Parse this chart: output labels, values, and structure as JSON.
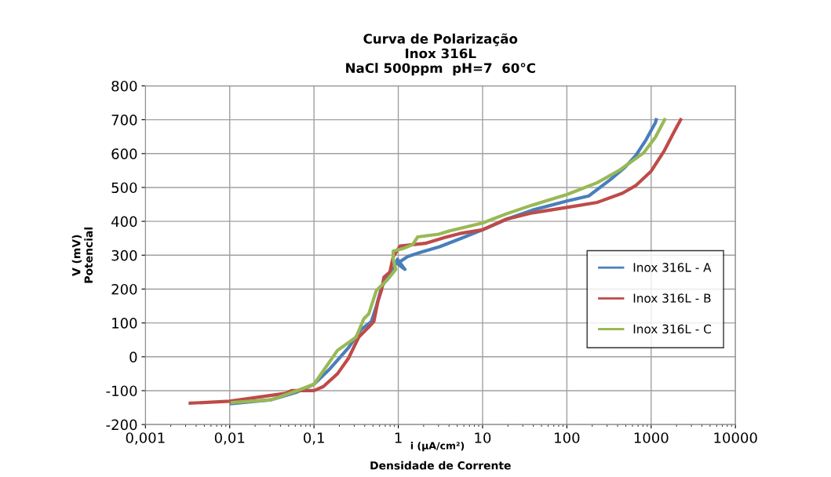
{
  "chart_data": {
    "type": "line",
    "title": "Curva de Polarização\nInox 316L\nNaCl 500ppm  pH=7  60°C",
    "xlabel": "Densidade de Corrente",
    "ylabel": "V (mV)\nPotencial",
    "annotations": [
      "i (µA/cm²)"
    ],
    "log": "x",
    "xlim": [
      0.001,
      10000
    ],
    "xticks": [
      {
        "value": 0.001,
        "label": "0,001"
      },
      {
        "value": 0.01,
        "label": "0,01"
      },
      {
        "value": 0.1,
        "label": "0,1"
      },
      {
        "value": 1,
        "label": "1"
      },
      {
        "value": 10,
        "label": "10"
      },
      {
        "value": 100,
        "label": "100"
      },
      {
        "value": 1000,
        "label": "1000"
      },
      {
        "value": 10000,
        "label": "10000"
      }
    ],
    "ylim": [
      -200,
      800
    ],
    "yticks": [
      -200,
      -100,
      0,
      100,
      200,
      300,
      400,
      500,
      600,
      700,
      800
    ],
    "grid": true,
    "legend": "right",
    "marker": "none",
    "line_style": "solid",
    "series": [
      {
        "name": "Inox 316L - A",
        "color": "#4a7ebb",
        "x": [
          0.0105,
          0.031,
          0.063,
          0.1,
          0.155,
          0.257,
          0.363,
          0.479,
          0.55,
          0.631,
          0.741,
          0.871,
          0.977,
          1.2,
          1.0,
          1.05,
          1.29,
          1.82,
          3.09,
          5.37,
          10,
          19.1,
          38.9,
          100,
          182,
          324,
          490,
          661,
          871,
          1122,
          1148
        ],
        "values": [
          -138,
          -127,
          -104,
          -81,
          -35,
          27,
          81,
          104,
          150,
          204,
          235,
          258,
          288,
          258,
          273,
          281,
          296,
          308,
          325,
          348,
          375,
          406,
          433,
          460,
          475,
          522,
          560,
          595,
          641,
          691,
          700
        ]
      },
      {
        "name": "Inox 316L - B",
        "color": "#be4b48",
        "x": [
          0.0034,
          0.01,
          0.046,
          0.054,
          0.1,
          0.129,
          0.19,
          0.257,
          0.339,
          0.447,
          0.513,
          0.575,
          0.631,
          0.676,
          0.794,
          0.871,
          1.05,
          2.09,
          3.55,
          5.37,
          10,
          19.1,
          38.9,
          100,
          229,
          457,
          661,
          1000,
          1413,
          1905,
          2239
        ],
        "values": [
          -137,
          -131,
          -108,
          -100,
          -100,
          -88,
          -50,
          -4,
          58,
          88,
          104,
          165,
          196,
          235,
          250,
          296,
          327,
          335,
          352,
          364,
          375,
          406,
          425,
          441,
          456,
          483,
          506,
          548,
          606,
          668,
          700
        ]
      },
      {
        "name": "Inox 316L - C",
        "color": "#98b954",
        "x": [
          0.0107,
          0.031,
          0.063,
          0.1,
          0.19,
          0.316,
          0.389,
          0.447,
          0.55,
          0.741,
          0.933,
          0.871,
          0.871,
          1.12,
          1.48,
          1.7,
          3.02,
          4.07,
          10,
          19.1,
          38.9,
          100,
          229,
          427,
          813,
          1122,
          1445
        ],
        "values": [
          -135,
          -127,
          -100,
          -81,
          19,
          58,
          112,
          127,
          196,
          227,
          258,
          288,
          312,
          319,
          331,
          354,
          362,
          372,
          395,
          422,
          448,
          479,
          514,
          552,
          602,
          648,
          700
        ]
      }
    ]
  }
}
